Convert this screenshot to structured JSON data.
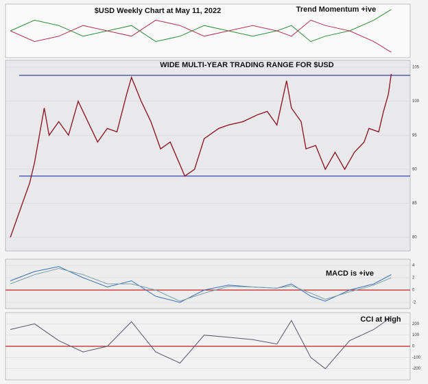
{
  "chart_data": [
    {
      "type": "line",
      "title": "$USD Weekly Chart at May 11, 2022",
      "annotation": "Trend Momentum +ive",
      "x": [
        2014.5,
        2015.0,
        2015.5,
        2016.0,
        2016.5,
        2017.0,
        2017.5,
        2018.0,
        2018.5,
        2019.0,
        2019.5,
        2020.0,
        2020.3,
        2020.7,
        2021.0,
        2021.5,
        2022.0,
        2022.36
      ],
      "xlim": [
        2014.4,
        2022.75
      ],
      "ylim": [
        0,
        10
      ],
      "yticks": [],
      "series": [
        {
          "color": "#2e8b3a",
          "values": [
            5,
            7,
            6,
            4,
            5,
            6,
            3,
            4,
            6,
            5,
            4,
            5,
            6,
            3,
            4,
            5,
            7,
            9
          ]
        },
        {
          "color": "#b03050",
          "values": [
            5,
            3,
            4,
            6,
            5,
            4,
            7,
            6,
            4,
            5,
            6,
            5,
            4,
            7,
            6,
            5,
            3,
            1
          ]
        }
      ]
    },
    {
      "type": "line",
      "title": "WIDE MULTI-YEAR TRADING RANGE FOR $USD",
      "x": [
        2014.5,
        2014.7,
        2014.9,
        2015.0,
        2015.2,
        2015.3,
        2015.5,
        2015.7,
        2015.9,
        2016.1,
        2016.3,
        2016.5,
        2016.7,
        2016.9,
        2017.0,
        2017.2,
        2017.4,
        2017.6,
        2017.8,
        2018.1,
        2018.3,
        2018.5,
        2018.8,
        2019.0,
        2019.3,
        2019.6,
        2019.8,
        2020.0,
        2020.2,
        2020.3,
        2020.5,
        2020.6,
        2020.8,
        2021.0,
        2021.2,
        2021.4,
        2021.6,
        2021.8,
        2021.9,
        2022.1,
        2022.2,
        2022.3,
        2022.36
      ],
      "xlim": [
        2014.4,
        2022.75
      ],
      "ylim": [
        78,
        106
      ],
      "yticks": [
        80,
        85,
        90,
        95,
        100,
        105
      ],
      "reference_lines": [
        103.8,
        89
      ],
      "series": [
        {
          "color": "#8b1a2b",
          "values": [
            80,
            84,
            88,
            91,
            99,
            95,
            97,
            95,
            100,
            97,
            94,
            96,
            95.5,
            101,
            103.5,
            100,
            97,
            93,
            94,
            89,
            90,
            94.5,
            96,
            96.5,
            97,
            98,
            98.5,
            96.5,
            103,
            99,
            97,
            93,
            93.5,
            90,
            92.5,
            90,
            92.5,
            94,
            96,
            95.5,
            98.5,
            101,
            104
          ]
        }
      ]
    },
    {
      "type": "line",
      "annotation": "MACD is +ive",
      "x": [
        2014.5,
        2015.0,
        2015.5,
        2016.0,
        2016.5,
        2017.0,
        2017.5,
        2018.0,
        2018.5,
        2019.0,
        2019.5,
        2020.0,
        2020.3,
        2020.7,
        2021.0,
        2021.5,
        2022.0,
        2022.36
      ],
      "xlim": [
        2014.4,
        2022.75
      ],
      "ylim": [
        -3,
        5
      ],
      "yticks": [
        -2,
        0,
        2,
        4
      ],
      "reference_lines": [
        0
      ],
      "series": [
        {
          "color": "#3a6fb0",
          "values": [
            1.5,
            3,
            3.8,
            2,
            0.5,
            1.5,
            -1,
            -2,
            0,
            0.8,
            0.5,
            0.3,
            1,
            -1,
            -1.8,
            0,
            1,
            2.5
          ]
        },
        {
          "color": "#7aa0a8",
          "values": [
            1,
            2.5,
            3.5,
            2.5,
            1,
            1,
            0,
            -1.8,
            -0.5,
            0.6,
            0.5,
            0.3,
            0.7,
            -0.5,
            -1.5,
            -0.3,
            0.8,
            2
          ]
        }
      ]
    },
    {
      "type": "line",
      "annotation": "CCI at High",
      "x": [
        2014.5,
        2015.0,
        2015.5,
        2016.0,
        2016.5,
        2017.0,
        2017.5,
        2018.0,
        2018.5,
        2019.0,
        2019.5,
        2020.0,
        2020.3,
        2020.7,
        2021.0,
        2021.5,
        2022.0,
        2022.36
      ],
      "xlim": [
        2014.4,
        2022.75
      ],
      "ylim": [
        -300,
        300
      ],
      "yticks": [
        -200,
        -100,
        0,
        100,
        200
      ],
      "reference_lines": [
        0
      ],
      "series": [
        {
          "color": "#555566",
          "values": [
            150,
            200,
            50,
            -50,
            0,
            220,
            -50,
            -150,
            100,
            80,
            60,
            20,
            230,
            -100,
            -200,
            50,
            150,
            260
          ]
        }
      ]
    }
  ]
}
